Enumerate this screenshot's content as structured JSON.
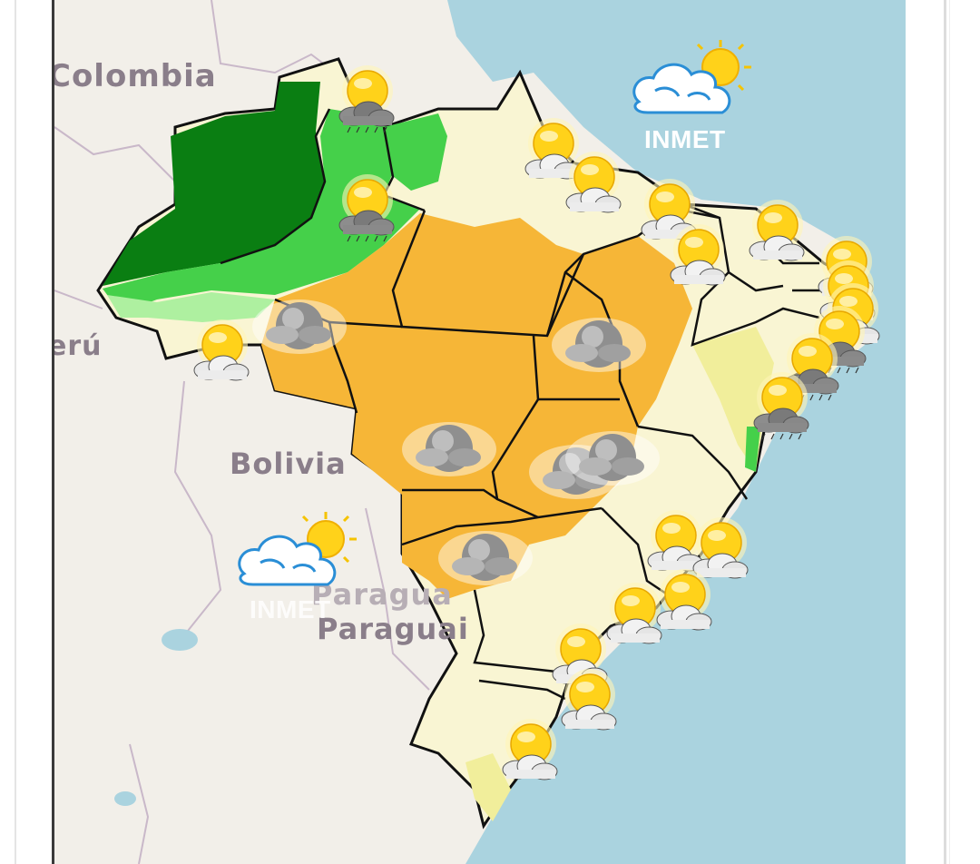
{
  "map": {
    "labels": {
      "colombia": "Colombia",
      "peru": "Perú",
      "bolivia": "Bolivia",
      "paraguay_faded": "Paragua",
      "paraguay": "Paraguai"
    },
    "brand": {
      "name": "INMET"
    },
    "colors": {
      "ocean": "#aad3df",
      "land": "#f2efe9",
      "heavy_rain": "#0a7e12",
      "moderate_rain": "#45d04a",
      "light_rain": "#aef0a0",
      "normal": "#f9f5d3",
      "dry_light": "#f1ee9b",
      "dry": "#f6b637",
      "border": "#111111"
    },
    "legend_icons": [
      "sun-icon",
      "partly-cloudy-icon",
      "storm-cloud-icon",
      "cloud-icon"
    ]
  }
}
